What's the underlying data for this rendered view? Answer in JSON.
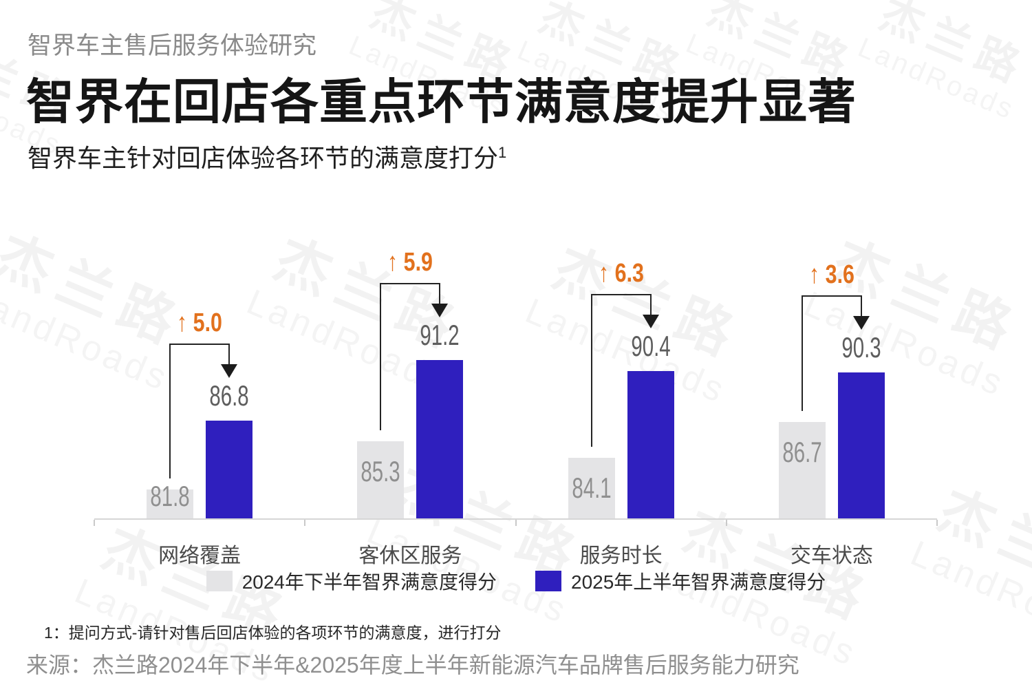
{
  "header": {
    "eyebrow": "智界车主售后服务体验研究",
    "title": "智界在回店各重点环节满意度提升显著",
    "subtitle": "智界车主针对回店体验各环节的满意度打分",
    "subtitle_sup": "1"
  },
  "watermark": {
    "cn": "杰兰路",
    "en": "LandRoads"
  },
  "chart_data": {
    "type": "bar",
    "title": "智界车主针对回店体验各环节的满意度打分",
    "categories": [
      "网络覆盖",
      "客休区服务",
      "服务时长",
      "交车状态"
    ],
    "series": [
      {
        "name": "2024年下半年智界满意度得分",
        "color": "#e4e4e6",
        "values": [
          81.8,
          85.3,
          84.1,
          86.7
        ]
      },
      {
        "name": "2025年上半年智界满意度得分",
        "color": "#2f1fbe",
        "values": [
          86.8,
          91.2,
          90.4,
          90.3
        ]
      }
    ],
    "deltas": {
      "prefix": "↑",
      "color": "#e2711d",
      "values": [
        5.0,
        5.9,
        6.3,
        3.6
      ]
    },
    "value_axis": {
      "visible": false,
      "baseline_value": 79.7
    },
    "grid": false,
    "legend_position": "bottom"
  },
  "legend": {
    "items": [
      {
        "label": "2024年下半年智界满意度得分",
        "color": "#e4e4e6"
      },
      {
        "label": "2025年上半年智界满意度得分",
        "color": "#2f1fbe"
      }
    ]
  },
  "footer": {
    "footnote": "1：提问方式-请针对售后回店体验的各项环节的满意度，进行打分",
    "source": "来源：杰兰路2024年下半年&2025年度上半年新能源汽车品牌售后服务能力研究"
  }
}
